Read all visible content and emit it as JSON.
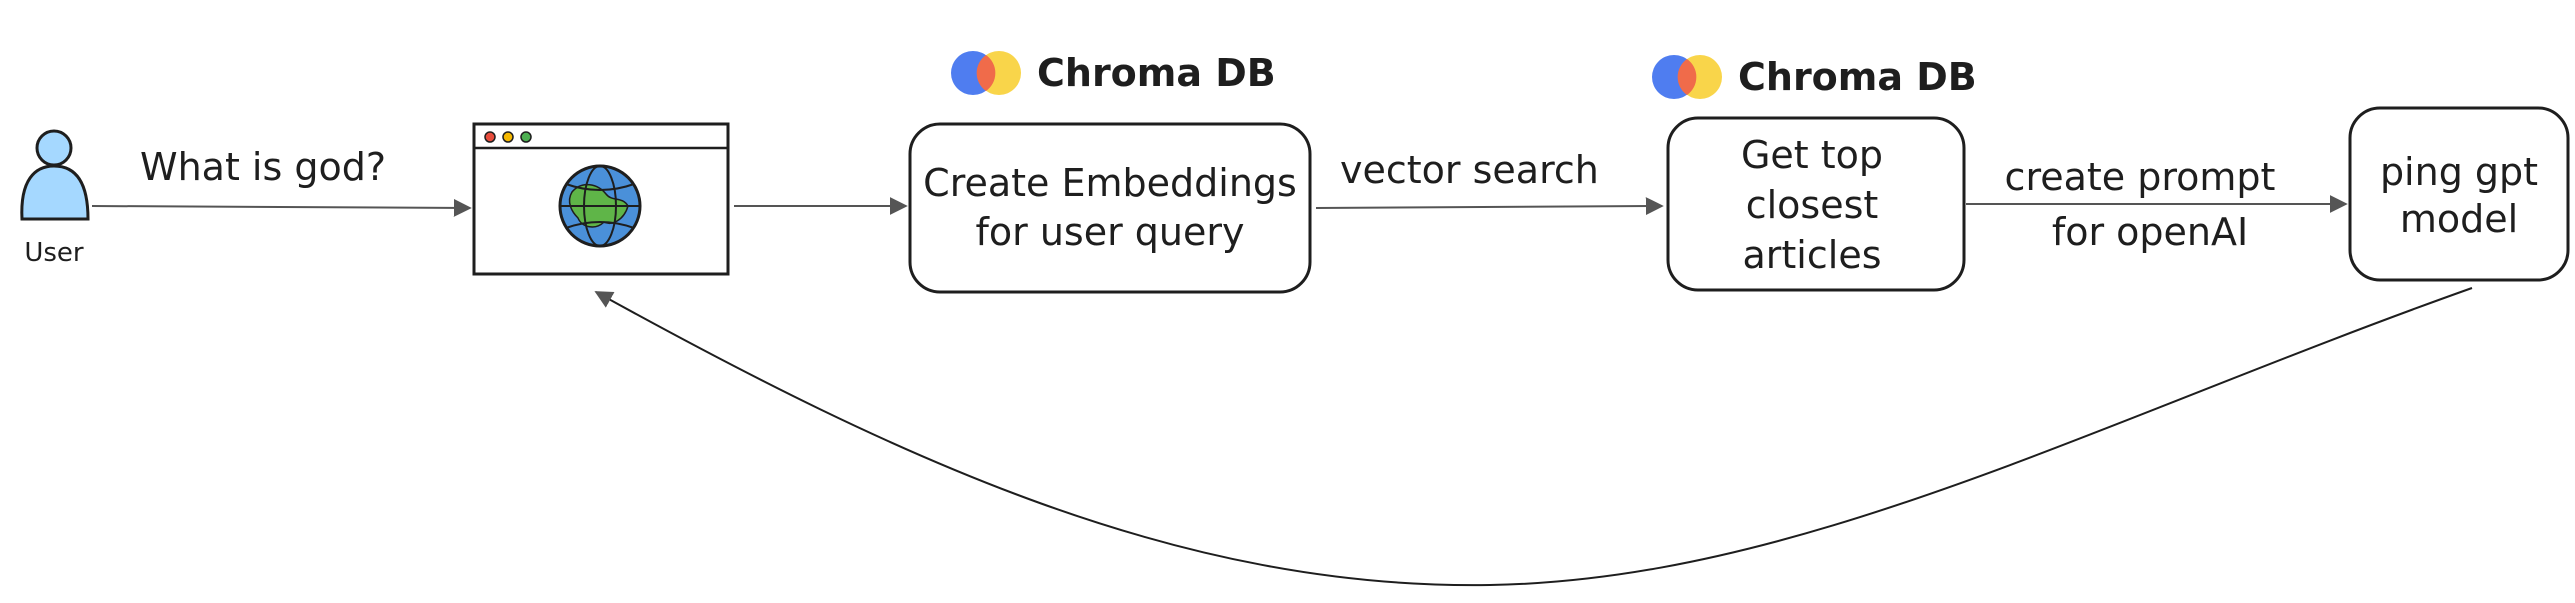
{
  "user": {
    "label": "User"
  },
  "edges": {
    "user_to_browser": "What is god?",
    "embeddings_to_search": "vector search",
    "search_to_prompt_line1": "create prompt",
    "search_to_prompt_line2": "for openAI"
  },
  "nodes": {
    "browser": {
      "icon": "globe-icon"
    },
    "embeddings": {
      "line1": "Create Embeddings",
      "line2": "for user query"
    },
    "top_articles": {
      "line1": "Get top",
      "line2": "closest",
      "line3": "articles"
    },
    "gpt": {
      "line1": "ping gpt",
      "line2": "model"
    }
  },
  "brands": [
    {
      "name": "Chroma DB",
      "colors": [
        "#4f7df0",
        "#f06b4a",
        "#f9d54a"
      ]
    },
    {
      "name": "Chroma DB",
      "colors": [
        "#4f7df0",
        "#f06b4a",
        "#f9d54a"
      ]
    }
  ],
  "colors": {
    "stroke": "#1e1e1e",
    "user_fill": "#a5d8ff",
    "globe_ocean": "#4a90d9",
    "globe_land": "#5fb548",
    "window_dot_red": "#e74c3c",
    "window_dot_yellow": "#f5b800",
    "window_dot_green": "#4caf50"
  }
}
